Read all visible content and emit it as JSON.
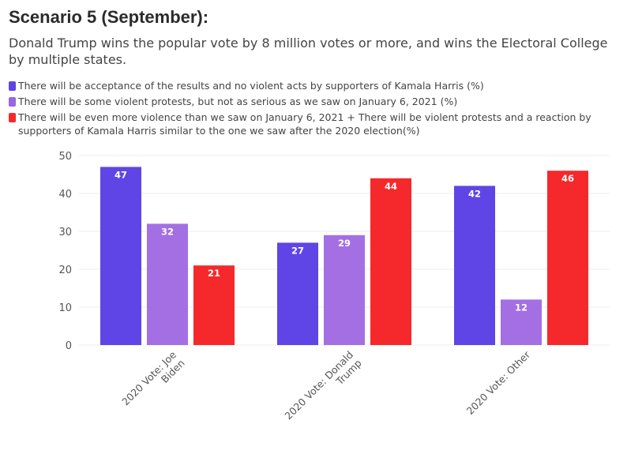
{
  "header": {
    "title": "Scenario 5 (September):",
    "subtitle": "Donald Trump wins the popular vote by 8 million votes or more, and wins the Electoral College by multiple states."
  },
  "legend": [
    {
      "label": "There will be acceptance of the results and no violent acts by supporters of Kamala Harris (%)",
      "color": "#5f45e6"
    },
    {
      "label": "There will be some violent protests, but not as serious as we saw on January 6, 2021 (%)",
      "color": "#9a66e0"
    },
    {
      "label": "There will be even more violence than we saw on January 6, 2021 + There will be violent protests and a reaction by supporters of Kamala Harris similar to the one we saw after the 2020 election(%)",
      "color": "#f5282c"
    }
  ],
  "chart_data": {
    "type": "bar",
    "categories": [
      [
        "2020 Vote: Joe",
        "Biden"
      ],
      [
        "2020 Vote: Donald",
        "Trump"
      ],
      [
        "2020 Vote: Other"
      ]
    ],
    "series": [
      {
        "name": "There will be acceptance of the results and no violent acts by supporters of Kamala Harris (%)",
        "color": "#5f45e6",
        "values": [
          47,
          27,
          42
        ]
      },
      {
        "name": "There will be some violent protests, but not as serious as we saw on January 6, 2021 (%)",
        "color": "#a46fe3",
        "values": [
          32,
          29,
          12
        ]
      },
      {
        "name": "There will be even more violence than we saw on January 6, 2021 + There will be violent protests and a reaction by supporters of Kamala Harris similar to the one we saw after the 2020 election(%)",
        "color": "#f5282c",
        "values": [
          21,
          44,
          46
        ]
      }
    ],
    "ylim": [
      0,
      50
    ],
    "yticks": [
      0,
      10,
      20,
      30,
      40,
      50
    ],
    "grid": true,
    "legend_position": "top-left"
  }
}
